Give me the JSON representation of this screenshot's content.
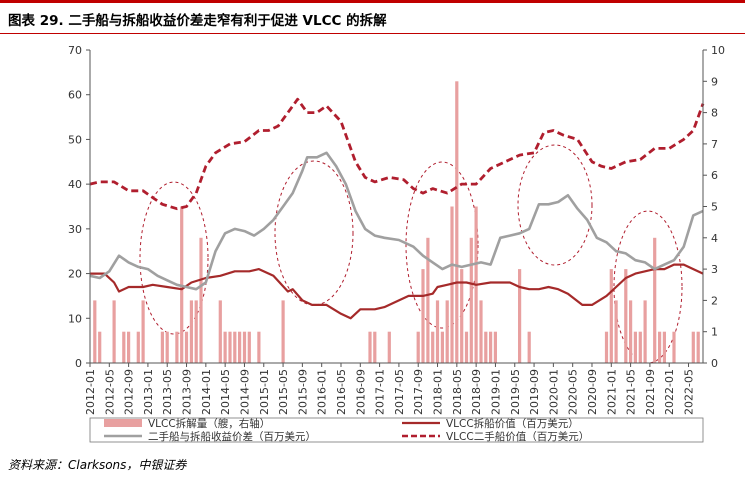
{
  "header": {
    "title": "图表 29. 二手船与拆船收益价差走窄有利于促进 VLCC 的拆解"
  },
  "footer": {
    "source": "资料来源：Clarksons，中银证券"
  },
  "chart_data": {
    "type": "bar+line",
    "title": "图表 29. 二手船与拆船收益价差走窄有利于促进 VLCC 的拆解",
    "x_start": "2012-01",
    "x_end": "2022-08",
    "x_ticks": [
      "2012-01",
      "2012-05",
      "2012-09",
      "2013-01",
      "2013-05",
      "2013-09",
      "2014-01",
      "2014-05",
      "2014-09",
      "2015-01",
      "2015-05",
      "2015-09",
      "2016-01",
      "2016-05",
      "2016-09",
      "2017-01",
      "2017-05",
      "2017-09",
      "2018-01",
      "2018-05",
      "2018-09",
      "2019-01",
      "2019-05",
      "2019-09",
      "2020-01",
      "2020-05",
      "2020-09",
      "2021-01",
      "2021-05",
      "2021-09",
      "2022-01",
      "2022-05"
    ],
    "y_left": {
      "min": 0,
      "max": 70,
      "ticks": [
        0,
        10,
        20,
        30,
        40,
        50,
        60,
        70
      ],
      "unit": "百万美元"
    },
    "y_right": {
      "min": 0,
      "max": 10,
      "ticks": [
        0,
        1,
        2,
        3,
        4,
        5,
        6,
        7,
        8,
        9,
        10
      ],
      "unit": "艘"
    },
    "grid": false,
    "legend": "bottom",
    "colors": {
      "bars": "#e8a0a0",
      "scrap_value": "#a52a2a",
      "spread": "#a0a0a0",
      "secondhand": "#b01e2e",
      "accent": "#c00000"
    },
    "series": [
      {
        "name": "VLCC拆解量（艘，右轴）",
        "kind": "bar",
        "axis": "right",
        "points": [
          [
            "2012-02",
            2
          ],
          [
            "2012-03",
            1
          ],
          [
            "2012-06",
            2
          ],
          [
            "2012-08",
            1
          ],
          [
            "2012-09",
            1
          ],
          [
            "2012-11",
            1
          ],
          [
            "2012-12",
            2
          ],
          [
            "2013-04",
            1
          ],
          [
            "2013-05",
            1
          ],
          [
            "2013-07",
            1
          ],
          [
            "2013-08",
            5
          ],
          [
            "2013-09",
            1
          ],
          [
            "2013-10",
            2
          ],
          [
            "2013-11",
            2
          ],
          [
            "2013-12",
            4
          ],
          [
            "2014-04",
            2
          ],
          [
            "2014-05",
            1
          ],
          [
            "2014-06",
            1
          ],
          [
            "2014-07",
            1
          ],
          [
            "2014-08",
            1
          ],
          [
            "2014-09",
            1
          ],
          [
            "2014-10",
            1
          ],
          [
            "2014-12",
            1
          ],
          [
            "2015-05",
            2
          ],
          [
            "2016-11",
            1
          ],
          [
            "2016-12",
            1
          ],
          [
            "2017-03",
            1
          ],
          [
            "2017-09",
            1
          ],
          [
            "2017-10",
            3
          ],
          [
            "2017-11",
            4
          ],
          [
            "2017-12",
            1
          ],
          [
            "2018-01",
            2
          ],
          [
            "2018-02",
            1
          ],
          [
            "2018-03",
            2
          ],
          [
            "2018-04",
            5
          ],
          [
            "2018-05",
            9
          ],
          [
            "2018-06",
            3
          ],
          [
            "2018-07",
            1
          ],
          [
            "2018-08",
            4
          ],
          [
            "2018-09",
            5
          ],
          [
            "2018-10",
            2
          ],
          [
            "2018-11",
            1
          ],
          [
            "2018-12",
            1
          ],
          [
            "2019-01",
            1
          ],
          [
            "2019-06",
            3
          ],
          [
            "2019-08",
            1
          ],
          [
            "2020-12",
            1
          ],
          [
            "2021-01",
            3
          ],
          [
            "2021-02",
            2
          ],
          [
            "2021-04",
            3
          ],
          [
            "2021-05",
            2
          ],
          [
            "2021-06",
            1
          ],
          [
            "2021-07",
            1
          ],
          [
            "2021-08",
            2
          ],
          [
            "2021-10",
            4
          ],
          [
            "2021-11",
            1
          ],
          [
            "2021-12",
            1
          ],
          [
            "2022-02",
            1
          ],
          [
            "2022-06",
            1
          ],
          [
            "2022-07",
            1
          ]
        ]
      },
      {
        "name": "VLCC拆船价值（百万美元）",
        "kind": "line",
        "axis": "left",
        "points": [
          [
            "2012-01",
            20
          ],
          [
            "2012-04",
            20
          ],
          [
            "2012-06",
            18
          ],
          [
            "2012-07",
            16
          ],
          [
            "2012-09",
            17
          ],
          [
            "2012-12",
            17
          ],
          [
            "2013-02",
            17.5
          ],
          [
            "2013-05",
            17
          ],
          [
            "2013-08",
            16.5
          ],
          [
            "2013-10",
            18
          ],
          [
            "2014-01",
            19
          ],
          [
            "2014-04",
            19.5
          ],
          [
            "2014-07",
            20.5
          ],
          [
            "2014-10",
            20.5
          ],
          [
            "2014-12",
            21
          ],
          [
            "2015-03",
            19.5
          ],
          [
            "2015-06",
            16
          ],
          [
            "2015-07",
            16.5
          ],
          [
            "2015-09",
            14
          ],
          [
            "2015-11",
            13
          ],
          [
            "2016-02",
            13
          ],
          [
            "2016-05",
            11
          ],
          [
            "2016-07",
            10
          ],
          [
            "2016-09",
            12
          ],
          [
            "2016-12",
            12
          ],
          [
            "2017-02",
            12.5
          ],
          [
            "2017-05",
            14
          ],
          [
            "2017-07",
            15
          ],
          [
            "2017-10",
            15
          ],
          [
            "2017-12",
            15.5
          ],
          [
            "2018-01",
            17
          ],
          [
            "2018-03",
            17.5
          ],
          [
            "2018-05",
            18
          ],
          [
            "2018-07",
            18
          ],
          [
            "2018-09",
            17.5
          ],
          [
            "2018-12",
            18
          ],
          [
            "2019-02",
            18
          ],
          [
            "2019-04",
            18
          ],
          [
            "2019-06",
            17
          ],
          [
            "2019-08",
            16.5
          ],
          [
            "2019-10",
            16.5
          ],
          [
            "2019-12",
            17
          ],
          [
            "2020-02",
            16.5
          ],
          [
            "2020-04",
            15.5
          ],
          [
            "2020-07",
            13
          ],
          [
            "2020-09",
            13
          ],
          [
            "2020-12",
            15
          ],
          [
            "2021-02",
            17
          ],
          [
            "2021-04",
            19
          ],
          [
            "2021-06",
            20
          ],
          [
            "2021-08",
            20.5
          ],
          [
            "2021-10",
            21
          ],
          [
            "2021-12",
            21
          ],
          [
            "2022-02",
            22
          ],
          [
            "2022-04",
            22
          ],
          [
            "2022-06",
            21
          ],
          [
            "2022-08",
            20
          ]
        ]
      },
      {
        "name": "二手船与拆船收益价差（百万美元）",
        "kind": "line",
        "axis": "left",
        "points": [
          [
            "2012-01",
            19.5
          ],
          [
            "2012-03",
            19
          ],
          [
            "2012-05",
            20.5
          ],
          [
            "2012-07",
            24
          ],
          [
            "2012-09",
            22.5
          ],
          [
            "2012-11",
            21.5
          ],
          [
            "2013-01",
            21
          ],
          [
            "2013-03",
            19.5
          ],
          [
            "2013-05",
            18.5
          ],
          [
            "2013-07",
            17.5
          ],
          [
            "2013-09",
            17
          ],
          [
            "2013-11",
            16.5
          ],
          [
            "2014-01",
            18
          ],
          [
            "2014-03",
            25
          ],
          [
            "2014-05",
            29
          ],
          [
            "2014-07",
            30
          ],
          [
            "2014-09",
            29.5
          ],
          [
            "2014-11",
            28.5
          ],
          [
            "2015-01",
            30
          ],
          [
            "2015-03",
            32
          ],
          [
            "2015-05",
            35
          ],
          [
            "2015-07",
            38
          ],
          [
            "2015-09",
            43
          ],
          [
            "2015-10",
            46
          ],
          [
            "2015-12",
            46
          ],
          [
            "2016-02",
            47
          ],
          [
            "2016-04",
            44
          ],
          [
            "2016-06",
            40
          ],
          [
            "2016-08",
            34
          ],
          [
            "2016-10",
            30
          ],
          [
            "2016-12",
            28.5
          ],
          [
            "2017-02",
            28
          ],
          [
            "2017-05",
            27.5
          ],
          [
            "2017-08",
            26
          ],
          [
            "2017-10",
            24
          ],
          [
            "2017-12",
            22.5
          ],
          [
            "2018-02",
            21
          ],
          [
            "2018-04",
            22
          ],
          [
            "2018-06",
            21.5
          ],
          [
            "2018-08",
            22
          ],
          [
            "2018-10",
            22.5
          ],
          [
            "2018-12",
            22
          ],
          [
            "2019-02",
            28
          ],
          [
            "2019-04",
            28.5
          ],
          [
            "2019-06",
            29
          ],
          [
            "2019-08",
            30
          ],
          [
            "2019-10",
            35.5
          ],
          [
            "2019-12",
            35.5
          ],
          [
            "2020-02",
            36
          ],
          [
            "2020-04",
            37.5
          ],
          [
            "2020-06",
            34.5
          ],
          [
            "2020-08",
            32
          ],
          [
            "2020-10",
            28
          ],
          [
            "2020-12",
            27
          ],
          [
            "2021-02",
            25
          ],
          [
            "2021-04",
            24.5
          ],
          [
            "2021-06",
            23
          ],
          [
            "2021-08",
            22.5
          ],
          [
            "2021-10",
            21
          ],
          [
            "2021-12",
            22
          ],
          [
            "2022-02",
            23
          ],
          [
            "2022-04",
            26
          ],
          [
            "2022-06",
            33
          ],
          [
            "2022-08",
            34
          ]
        ]
      },
      {
        "name": "VLCC二手船价值（百万美元）",
        "kind": "line-dashed",
        "axis": "left",
        "points": [
          [
            "2012-01",
            40
          ],
          [
            "2012-03",
            40.5
          ],
          [
            "2012-06",
            40.5
          ],
          [
            "2012-09",
            38.5
          ],
          [
            "2012-12",
            38.5
          ],
          [
            "2013-02",
            37
          ],
          [
            "2013-04",
            35.5
          ],
          [
            "2013-07",
            34.5
          ],
          [
            "2013-09",
            35
          ],
          [
            "2013-11",
            38
          ],
          [
            "2014-01",
            44
          ],
          [
            "2014-03",
            47
          ],
          [
            "2014-06",
            49
          ],
          [
            "2014-09",
            49.5
          ],
          [
            "2014-12",
            52
          ],
          [
            "2015-02",
            52
          ],
          [
            "2015-04",
            53
          ],
          [
            "2015-06",
            56
          ],
          [
            "2015-08",
            59
          ],
          [
            "2015-10",
            56
          ],
          [
            "2015-12",
            56
          ],
          [
            "2016-02",
            57.5
          ],
          [
            "2016-05",
            54
          ],
          [
            "2016-08",
            45
          ],
          [
            "2016-10",
            41.5
          ],
          [
            "2016-12",
            40.5
          ],
          [
            "2017-03",
            41.5
          ],
          [
            "2017-06",
            41
          ],
          [
            "2017-08",
            39
          ],
          [
            "2017-10",
            38
          ],
          [
            "2017-12",
            39
          ],
          [
            "2018-03",
            38
          ],
          [
            "2018-06",
            40
          ],
          [
            "2018-09",
            40
          ],
          [
            "2018-12",
            43.5
          ],
          [
            "2019-03",
            45
          ],
          [
            "2019-06",
            46.5
          ],
          [
            "2019-09",
            47
          ],
          [
            "2019-11",
            51.5
          ],
          [
            "2020-01",
            52
          ],
          [
            "2020-03",
            51
          ],
          [
            "2020-06",
            50
          ],
          [
            "2020-09",
            45
          ],
          [
            "2020-11",
            44
          ],
          [
            "2021-01",
            43.5
          ],
          [
            "2021-04",
            45
          ],
          [
            "2021-07",
            45.5
          ],
          [
            "2021-10",
            48
          ],
          [
            "2022-01",
            48
          ],
          [
            "2022-04",
            50
          ],
          [
            "2022-06",
            52
          ],
          [
            "2022-08",
            58
          ]
        ]
      }
    ]
  }
}
